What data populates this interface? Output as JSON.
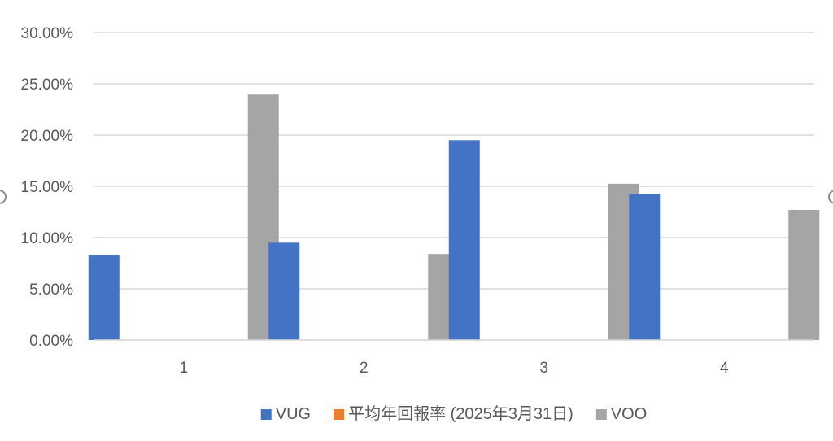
{
  "chart_data": {
    "type": "bar",
    "categories": [
      "1",
      "2",
      "3",
      "4"
    ],
    "series": [
      {
        "name": "VUG",
        "color": "#4472C4",
        "values": [
          0.0825,
          0.095,
          0.195,
          0.1425
        ]
      },
      {
        "name": "平均年回報率 (2025年3月31日)",
        "color": "#ED7D31",
        "values": [
          0,
          0,
          0,
          0
        ]
      },
      {
        "name": "VOO",
        "color": "#A5A5A5",
        "values": [
          0.2395,
          0.084,
          0.1525,
          0.127
        ]
      }
    ],
    "y_ticks": [
      "0.00%",
      "5.00%",
      "10.00%",
      "15.00%",
      "20.00%",
      "25.00%",
      "30.00%"
    ],
    "ylim": [
      0,
      0.3
    ],
    "grid": true,
    "legend_position": "bottom",
    "title": "",
    "xlabel": "",
    "ylabel": ""
  }
}
